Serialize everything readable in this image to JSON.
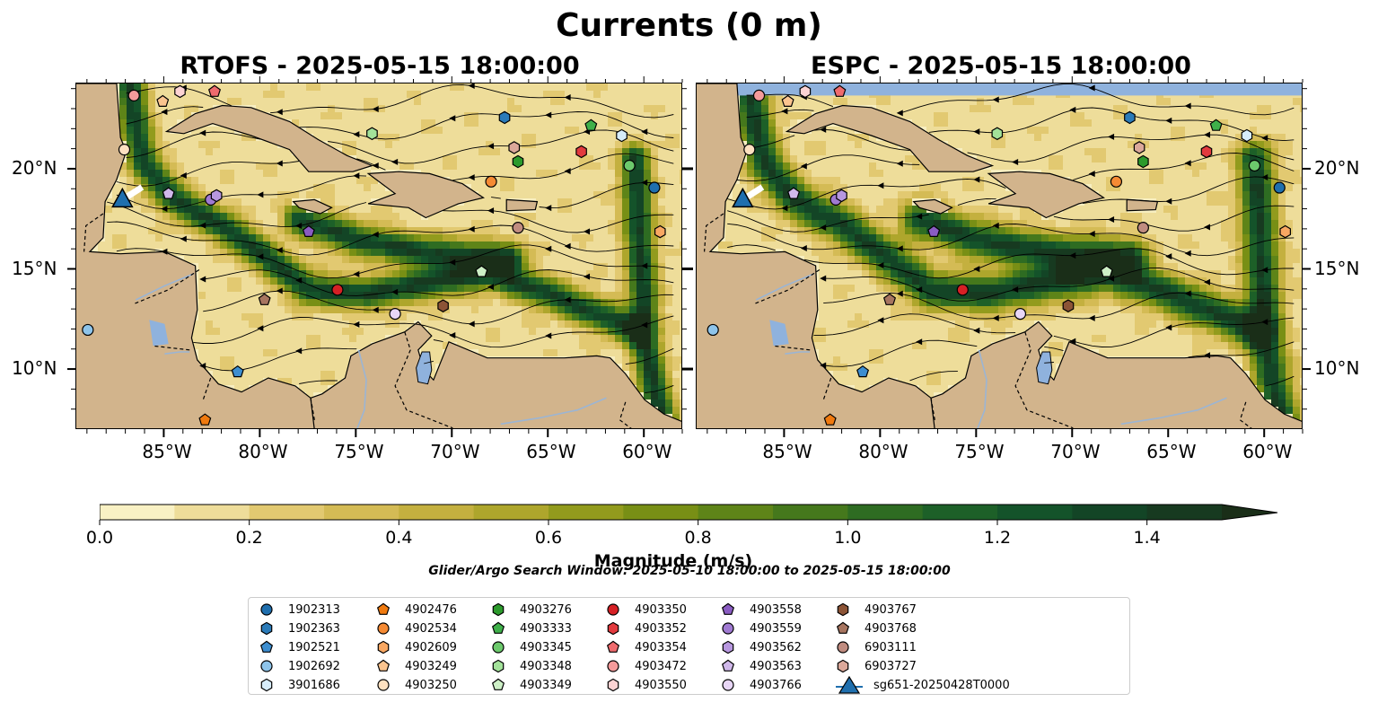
{
  "title": "Currents (0 m)",
  "left_panel": {
    "title": "RTOFS - 2025-05-15 18:00:00"
  },
  "right_panel": {
    "title": "ESPC - 2025-05-15 18:00:00"
  },
  "axes": {
    "lon_ticks": [
      "85°W",
      "80°W",
      "75°W",
      "70°W",
      "65°W",
      "60°W"
    ],
    "lat_ticks": [
      "20°N",
      "15°N",
      "10°N"
    ]
  },
  "colorbar": {
    "title": "Magnitude (m/s)",
    "ticks": [
      "0.0",
      "0.2",
      "0.4",
      "0.6",
      "0.8",
      "1.0",
      "1.2",
      "1.4"
    ],
    "range": [
      0,
      1.5
    ],
    "extend": "max",
    "colors": [
      "#f9f1c4",
      "#eedd9a",
      "#e2c971",
      "#d4bb55",
      "#c4b03f",
      "#aea62c",
      "#929b1d",
      "#788f15",
      "#5e8418",
      "#45781c",
      "#2e6c22",
      "#1d6028",
      "#14532a",
      "#134526",
      "#173a20",
      "#1a2e18"
    ]
  },
  "search_window": "Glider/Argo Search Window: 2025-05-10 18:00:00 to 2025-05-15 18:00:00",
  "legend": [
    {
      "label": "1902313",
      "marker": "circle",
      "color": "#1f6fae"
    },
    {
      "label": "1902363",
      "marker": "hexagon",
      "color": "#2b7bb9"
    },
    {
      "label": "1902521",
      "marker": "pentagon",
      "color": "#3d8ed0"
    },
    {
      "label": "1902692",
      "marker": "circle",
      "color": "#8ec4ea"
    },
    {
      "label": "3901686",
      "marker": "hexagon",
      "color": "#d6ecfa"
    },
    {
      "label": "4902476",
      "marker": "pentagon",
      "color": "#f07a0f"
    },
    {
      "label": "4902534",
      "marker": "circle",
      "color": "#f58a34"
    },
    {
      "label": "4902609",
      "marker": "hexagon",
      "color": "#f8a762"
    },
    {
      "label": "4903249",
      "marker": "pentagon",
      "color": "#fbc48f"
    },
    {
      "label": "4903250",
      "marker": "circle",
      "color": "#fde0c0"
    },
    {
      "label": "4903276",
      "marker": "hexagon",
      "color": "#2c9a2c"
    },
    {
      "label": "4903333",
      "marker": "pentagon",
      "color": "#3fb04a"
    },
    {
      "label": "4903345",
      "marker": "circle",
      "color": "#6cc96c"
    },
    {
      "label": "4903348",
      "marker": "hexagon",
      "color": "#a3e29a"
    },
    {
      "label": "4903349",
      "marker": "pentagon",
      "color": "#cdf0c6"
    },
    {
      "label": "4903350",
      "marker": "circle",
      "color": "#d62025"
    },
    {
      "label": "4903352",
      "marker": "hexagon",
      "color": "#e23a3e"
    },
    {
      "label": "4903354",
      "marker": "pentagon",
      "color": "#ef6b6e"
    },
    {
      "label": "4903472",
      "marker": "circle",
      "color": "#f59b9b"
    },
    {
      "label": "4903550",
      "marker": "hexagon",
      "color": "#fcd3d3"
    },
    {
      "label": "4903558",
      "marker": "pentagon",
      "color": "#8a5cc2"
    },
    {
      "label": "4903559",
      "marker": "circle",
      "color": "#a07ad2"
    },
    {
      "label": "4903562",
      "marker": "hexagon",
      "color": "#b797df"
    },
    {
      "label": "4903563",
      "marker": "pentagon",
      "color": "#d0b8ea"
    },
    {
      "label": "4903766",
      "marker": "circle",
      "color": "#e8d6f6"
    },
    {
      "label": "4903767",
      "marker": "hexagon",
      "color": "#8c5436"
    },
    {
      "label": "4903768",
      "marker": "pentagon",
      "color": "#a77560"
    },
    {
      "label": "6903111",
      "marker": "circle",
      "color": "#c08c80"
    },
    {
      "label": "6903727",
      "marker": "hexagon",
      "color": "#dba89a"
    },
    {
      "label": "sg651-20250428T0000",
      "marker": "triangle-line",
      "color": "#1f6fae"
    }
  ],
  "colors": {
    "land": "#d2b48c",
    "water_bodies": "#8fb2dd",
    "rivers": "#9bb5d4",
    "streamline": "#000000",
    "glider_track": "#ffffff"
  }
}
